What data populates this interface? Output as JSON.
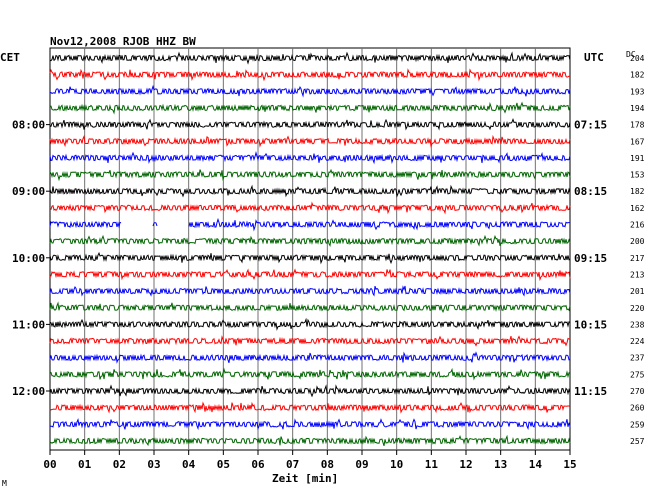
{
  "chart_data": {
    "type": "line",
    "title": "Nov12,2008   RJOB HHZ BW",
    "xlabel": "Zeit [min]",
    "left_axis_label": "CET",
    "right_axis_label": "UTC",
    "dc_label": "DC",
    "xlim": [
      0,
      15
    ],
    "x_ticks": [
      "00",
      "01",
      "02",
      "03",
      "04",
      "05",
      "06",
      "07",
      "08",
      "09",
      "10",
      "11",
      "12",
      "13",
      "14",
      "15"
    ],
    "trace_colors": [
      "#000000",
      "#ff0000",
      "#0000ff",
      "#006400"
    ],
    "left_time_labels": [
      "08:00",
      "09:00",
      "10:00",
      "11:00",
      "12:00"
    ],
    "right_time_labels": [
      "07:15",
      "08:15",
      "09:15",
      "10:15",
      "11:15"
    ],
    "dc_values": [
      "204",
      "182",
      "193",
      "194",
      "178",
      "167",
      "191",
      "153",
      "182",
      "162",
      "216",
      "200",
      "217",
      "213",
      "201",
      "220",
      "238",
      "224",
      "237",
      "275",
      "270",
      "260",
      "259",
      "257"
    ],
    "gaps": [
      {
        "trace": 10,
        "from_min": 2.05,
        "to_min": 2.95
      },
      {
        "trace": 10,
        "from_min": 3.1,
        "to_min": 4.0
      }
    ],
    "corner_mark": "M"
  }
}
